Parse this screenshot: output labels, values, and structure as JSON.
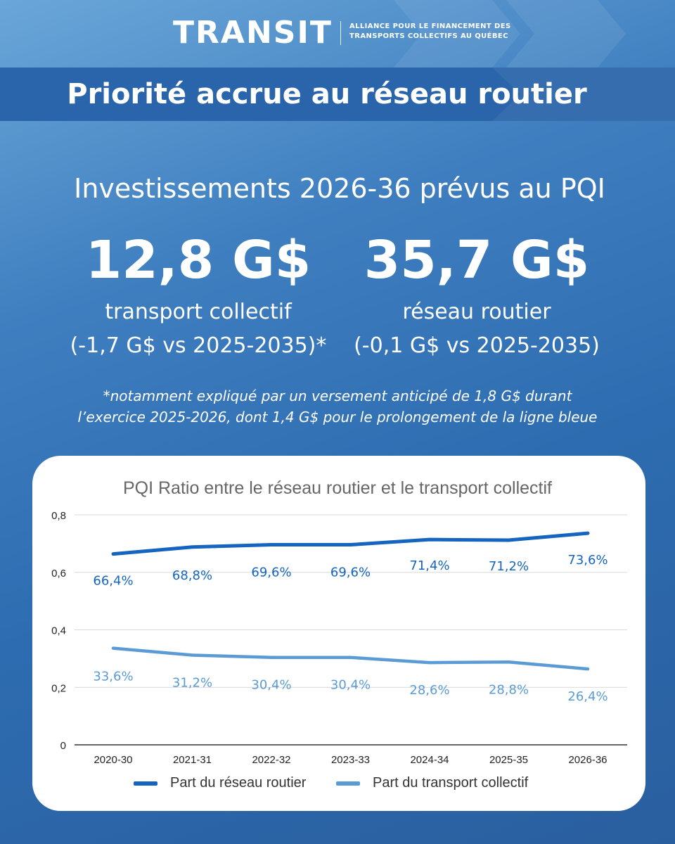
{
  "header": {
    "logo": "TRANSIT",
    "tagline_line1": "ALLIANCE POUR LE FINANCEMENT DES",
    "tagline_line2": "TRANSPORTS COLLECTIFS AU QUÉBEC"
  },
  "banner_title": "Priorité accrue au réseau routier",
  "subtitle": "Investissements 2026-36 prévus au PQI",
  "stats": [
    {
      "value": "12,8 G$",
      "label_line1": "transport collectif",
      "label_line2": "(-1,7 G$ vs 2025-2035)*"
    },
    {
      "value": "35,7 G$",
      "label_line1": "réseau routier",
      "label_line2": "(-0,1 G$ vs 2025-2035)"
    }
  ],
  "footnote": {
    "line1": "*notamment expliqué par un versement anticipé de 1,8 G$ durant",
    "line2": "l’exercice 2025-2026, dont 1,4 G$ pour le prolongement de la ligne bleue"
  },
  "colors": {
    "road": "#1565c0",
    "transit": "#5b9bd5",
    "grid": "#d9d9d9",
    "axis_text": "#222222"
  },
  "chart_data": {
    "type": "line",
    "title": "PQI Ratio entre le réseau routier et le transport collectif",
    "categories": [
      "2020-30",
      "2021-31",
      "2022-32",
      "2023-33",
      "2024-34",
      "2025-35",
      "2026-36"
    ],
    "ylim": [
      0,
      0.8
    ],
    "yticks": [
      "0",
      "0,2",
      "0,4",
      "0,6",
      "0,8"
    ],
    "grid": true,
    "legend_position": "bottom",
    "series": [
      {
        "name": "Part du réseau routier",
        "values": [
          0.664,
          0.688,
          0.696,
          0.696,
          0.714,
          0.712,
          0.736
        ],
        "labels": [
          "66,4%",
          "68,8%",
          "69,6%",
          "69,6%",
          "71,4%",
          "71,2%",
          "73,6%"
        ]
      },
      {
        "name": "Part du transport collectif",
        "values": [
          0.336,
          0.312,
          0.304,
          0.304,
          0.286,
          0.288,
          0.264
        ],
        "labels": [
          "33,6%",
          "31,2%",
          "30,4%",
          "30,4%",
          "28,6%",
          "28,8%",
          "26,4%"
        ]
      }
    ]
  }
}
